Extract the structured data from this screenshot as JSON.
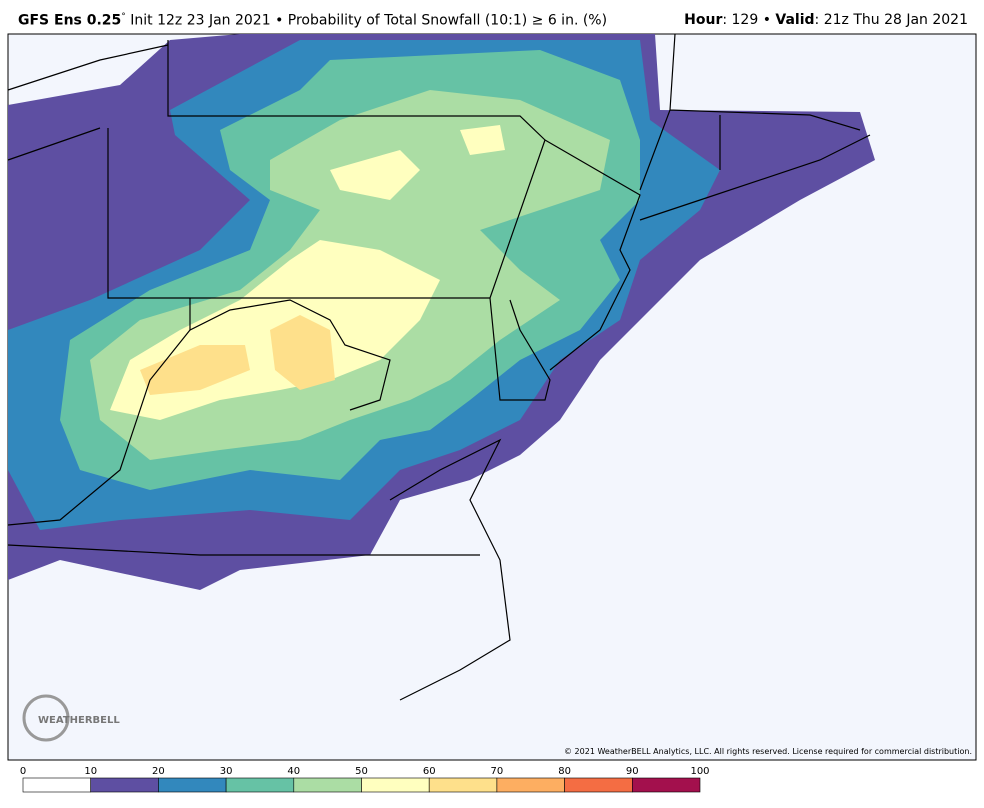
{
  "header": {
    "model": "GFS Ens 0.25",
    "degree": "°",
    "description": " Init 12z 23 Jan 2021 • Probability of Total Snowfall (10:1) ≥ 6 in. (%)",
    "hour_label": "Hour",
    "hour_value": ": 129 • ",
    "valid_label": "Valid",
    "valid_value": ": 21z Thu 28 Jan 2021"
  },
  "copyright": "© 2021 WeatherBELL Analytics, LLC. All rights reserved. License required for commercial distribution.",
  "logo": "WEATHERBELL",
  "legend": {
    "ticks": [
      0,
      10,
      20,
      30,
      40,
      50,
      60,
      70,
      80,
      90,
      100
    ],
    "colors": [
      "#ffffff",
      "#5e4fa2",
      "#3288bd",
      "#66c2a5",
      "#abdda4",
      "#ffffbf",
      "#fee08b",
      "#fdae61",
      "#f46d43",
      "#a3104d"
    ]
  }
}
